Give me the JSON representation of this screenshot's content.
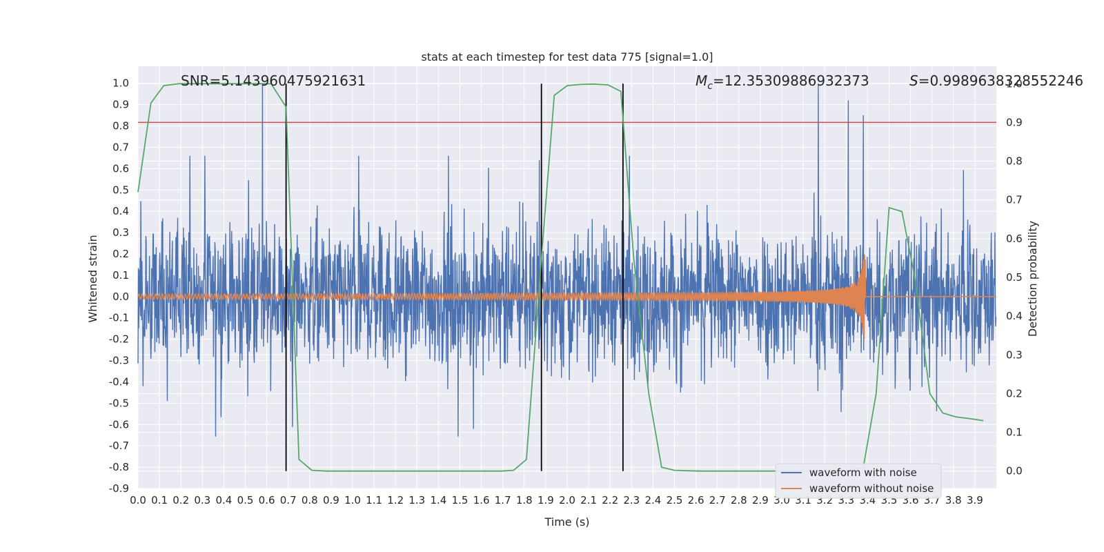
{
  "chart_data": {
    "type": "line",
    "title": "stats at each timestep for test data 775 [signal=1.0]",
    "xlabel": "Time (s)",
    "ylabel": "Whitened strain",
    "ylabel_right": "Detection probability",
    "xlim": [
      0.0,
      4.0
    ],
    "ylim": [
      -0.9,
      1.08
    ],
    "ylim_right": [
      -0.045,
      1.045
    ],
    "x_ticks": [
      "0.0",
      "0.1",
      "0.2",
      "0.3",
      "0.4",
      "0.5",
      "0.6",
      "0.7",
      "0.8",
      "0.9",
      "1.0",
      "1.1",
      "1.2",
      "1.3",
      "1.4",
      "1.5",
      "1.6",
      "1.7",
      "1.8",
      "1.9",
      "2.0",
      "2.1",
      "2.2",
      "2.3",
      "2.4",
      "2.5",
      "2.6",
      "2.7",
      "2.8",
      "2.9",
      "3.0",
      "3.1",
      "3.2",
      "3.3",
      "3.4",
      "3.5",
      "3.6",
      "3.7",
      "3.8",
      "3.9"
    ],
    "y_ticks": [
      "-0.9",
      "-0.8",
      "-0.7",
      "-0.6",
      "-0.5",
      "-0.4",
      "-0.3",
      "-0.2",
      "-0.1",
      "0.0",
      "0.1",
      "0.2",
      "0.3",
      "0.4",
      "0.5",
      "0.6",
      "0.7",
      "0.8",
      "0.9",
      "1.0"
    ],
    "y_ticks_right": [
      "0.0",
      "0.1",
      "0.2",
      "0.3",
      "0.4",
      "0.5",
      "0.6",
      "0.7",
      "0.8",
      "0.9",
      "1.0"
    ],
    "annotations": {
      "snr": "SNR=5.143960475921631",
      "mc_symbol": "M",
      "mc_subscript": "c",
      "mc_value": "=12.35309886932373",
      "s_symbol": "S",
      "s_value": "=0.9989638328552246"
    },
    "threshold_right": 0.9,
    "vertical_lines_x": [
      0.69,
      1.88,
      2.26
    ],
    "series": [
      {
        "name": "waveform with noise",
        "color": "#4c72b0",
        "amplitude_range": [
          -0.78,
          1.0
        ],
        "notable_peaks": [
          [
            0.58,
            1.0
          ],
          [
            3.17,
            1.0
          ],
          [
            3.31,
            0.92
          ],
          [
            3.38,
            0.85
          ]
        ]
      },
      {
        "name": "waveform without noise",
        "color": "#dd8452",
        "merger_time": 3.39,
        "peak_amplitude": 0.21
      },
      {
        "axis": "right",
        "color": "#55a868",
        "x": [
          0.0,
          0.06,
          0.12,
          0.19,
          0.25,
          0.31,
          0.38,
          0.44,
          0.5,
          0.56,
          0.62,
          0.69,
          0.75,
          0.81,
          0.88,
          0.94,
          1.0,
          1.06,
          1.12,
          1.19,
          1.25,
          1.31,
          1.38,
          1.44,
          1.5,
          1.56,
          1.62,
          1.69,
          1.75,
          1.81,
          1.88,
          1.94,
          2.0,
          2.06,
          2.12,
          2.19,
          2.25,
          2.31,
          2.38,
          2.44,
          2.5,
          2.56,
          2.62,
          2.69,
          2.75,
          2.81,
          2.88,
          2.94,
          3.0,
          3.06,
          3.12,
          3.19,
          3.25,
          3.31,
          3.38,
          3.44,
          3.5,
          3.56,
          3.62,
          3.69,
          3.75,
          3.81,
          3.88,
          3.94
        ],
        "y": [
          0.72,
          0.95,
          0.995,
          1.0,
          1.0,
          1.0,
          1.0,
          1.0,
          1.0,
          1.0,
          1.0,
          0.94,
          0.03,
          0.002,
          0.0,
          0.0,
          0.0,
          0.0,
          0.0,
          0.0,
          0.0,
          0.0,
          0.0,
          0.0,
          0.0,
          0.0,
          0.0,
          0.0,
          0.002,
          0.03,
          0.55,
          0.97,
          0.995,
          0.998,
          0.999,
          0.997,
          0.98,
          0.55,
          0.2,
          0.01,
          0.002,
          0.001,
          0.0,
          0.0,
          0.0,
          0.0,
          0.0,
          0.0,
          0.0,
          0.0,
          0.0,
          0.0,
          0.0,
          0.0,
          0.01,
          0.2,
          0.68,
          0.67,
          0.5,
          0.2,
          0.15,
          0.14,
          0.135,
          0.13
        ]
      }
    ],
    "legend": {
      "placement": "lower-right",
      "entries": [
        "waveform with noise",
        "waveform without noise"
      ]
    },
    "colors": {
      "background": "#eaeaf2",
      "grid": "#ffffff",
      "threshold": "#c44e52",
      "vertical_line": "#000000"
    }
  }
}
